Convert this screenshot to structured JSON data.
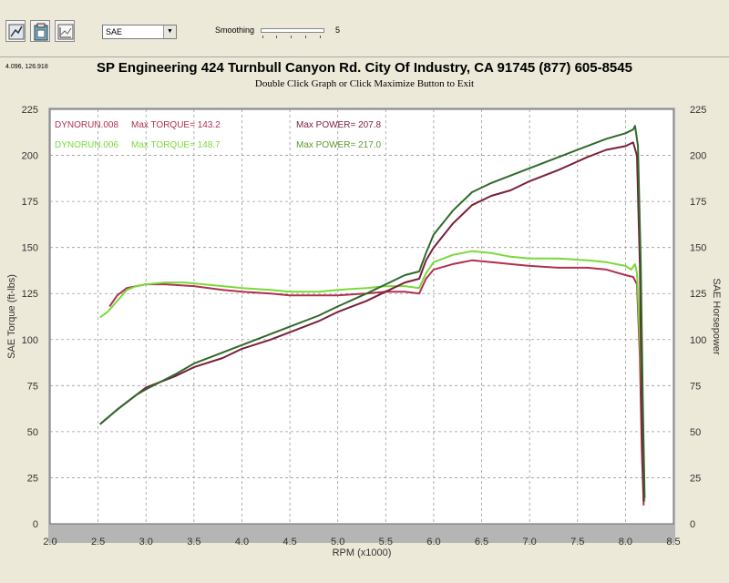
{
  "toolbar": {
    "buttons": [
      "graph-settings-icon",
      "clipboard-icon",
      "chart-options-icon"
    ],
    "select_value": "SAE",
    "smoothing_label": "Smoothing",
    "smoothing_value": "5"
  },
  "coordinate_readout": "4.096, 126.918",
  "header": {
    "title": "SP Engineering 424 Turnbull Canyon Rd. City Of Industry, CA 91745 (877) 605-8545",
    "subtitle": "Double Click Graph or Click Maximize Button to Exit"
  },
  "legend": [
    {
      "run": "DYNORUN.008",
      "torque_text": "Max TORQUE= 143.2",
      "power_text": "Max POWER= 207.8",
      "color": "#b03050"
    },
    {
      "run": "DYNORUN.006",
      "torque_text": "Max TORQUE= 148.7",
      "power_text": "Max POWER= 217.0",
      "color": "#7ad93a"
    }
  ],
  "chart_data": {
    "type": "line",
    "xlabel": "RPM (x1000)",
    "ylabel_left": "SAE Torque (ft-lbs)",
    "ylabel_right": "SAE Horsepower",
    "xlim": [
      2.0,
      8.5
    ],
    "ylim": [
      0,
      225
    ],
    "x_ticks": [
      "2.0",
      "2.5",
      "3.0",
      "3.5",
      "4.0",
      "4.5",
      "5.0",
      "5.5",
      "6.0",
      "6.5",
      "7.0",
      "7.5",
      "8.0",
      "8.5"
    ],
    "y_ticks": [
      "0",
      "25",
      "50",
      "75",
      "100",
      "125",
      "150",
      "175",
      "200",
      "225"
    ],
    "grid": true,
    "series": [
      {
        "name": "DYNORUN.008 Torque",
        "color": "#b03050",
        "points": [
          [
            2.62,
            118
          ],
          [
            2.7,
            124
          ],
          [
            2.8,
            128
          ],
          [
            2.9,
            129
          ],
          [
            3.0,
            130
          ],
          [
            3.2,
            130
          ],
          [
            3.5,
            129
          ],
          [
            3.8,
            127
          ],
          [
            4.0,
            126
          ],
          [
            4.3,
            125
          ],
          [
            4.5,
            124
          ],
          [
            4.8,
            124
          ],
          [
            5.0,
            124
          ],
          [
            5.3,
            125
          ],
          [
            5.5,
            126
          ],
          [
            5.7,
            126
          ],
          [
            5.85,
            125
          ],
          [
            5.92,
            133
          ],
          [
            6.0,
            138
          ],
          [
            6.2,
            141
          ],
          [
            6.4,
            143
          ],
          [
            6.6,
            142
          ],
          [
            6.8,
            141
          ],
          [
            7.0,
            140
          ],
          [
            7.3,
            139
          ],
          [
            7.6,
            139
          ],
          [
            7.8,
            138
          ],
          [
            8.0,
            135
          ],
          [
            8.08,
            134
          ],
          [
            8.12,
            130
          ],
          [
            8.15,
            90
          ],
          [
            8.17,
            40
          ],
          [
            8.19,
            10
          ]
        ]
      },
      {
        "name": "DYNORUN.006 Torque",
        "color": "#7ad93a",
        "points": [
          [
            2.52,
            112
          ],
          [
            2.6,
            115
          ],
          [
            2.7,
            121
          ],
          [
            2.8,
            127
          ],
          [
            2.9,
            129
          ],
          [
            3.0,
            130
          ],
          [
            3.2,
            131
          ],
          [
            3.4,
            131
          ],
          [
            3.6,
            130
          ],
          [
            3.8,
            129
          ],
          [
            4.0,
            128
          ],
          [
            4.3,
            127
          ],
          [
            4.5,
            126
          ],
          [
            4.8,
            126
          ],
          [
            5.0,
            127
          ],
          [
            5.3,
            128
          ],
          [
            5.5,
            129
          ],
          [
            5.7,
            129
          ],
          [
            5.85,
            128
          ],
          [
            5.92,
            136
          ],
          [
            6.0,
            142
          ],
          [
            6.2,
            146
          ],
          [
            6.4,
            148
          ],
          [
            6.6,
            147
          ],
          [
            6.8,
            145
          ],
          [
            7.0,
            144
          ],
          [
            7.3,
            144
          ],
          [
            7.6,
            143
          ],
          [
            7.8,
            142
          ],
          [
            8.0,
            140
          ],
          [
            8.06,
            138
          ],
          [
            8.1,
            141
          ],
          [
            8.12,
            136
          ],
          [
            8.15,
            100
          ],
          [
            8.18,
            50
          ],
          [
            8.2,
            12
          ]
        ]
      },
      {
        "name": "DYNORUN.008 Power",
        "color": "#7a1f3a",
        "points": [
          [
            2.52,
            54
          ],
          [
            2.7,
            62
          ],
          [
            2.9,
            70
          ],
          [
            3.0,
            74
          ],
          [
            3.3,
            80
          ],
          [
            3.5,
            85
          ],
          [
            3.8,
            90
          ],
          [
            4.0,
            95
          ],
          [
            4.3,
            100
          ],
          [
            4.5,
            104
          ],
          [
            4.8,
            110
          ],
          [
            5.0,
            115
          ],
          [
            5.3,
            121
          ],
          [
            5.5,
            126
          ],
          [
            5.7,
            131
          ],
          [
            5.85,
            133
          ],
          [
            5.92,
            143
          ],
          [
            6.0,
            150
          ],
          [
            6.2,
            163
          ],
          [
            6.4,
            173
          ],
          [
            6.6,
            178
          ],
          [
            6.8,
            181
          ],
          [
            7.0,
            186
          ],
          [
            7.3,
            192
          ],
          [
            7.6,
            199
          ],
          [
            7.8,
            203
          ],
          [
            8.0,
            205
          ],
          [
            8.08,
            207
          ],
          [
            8.12,
            200
          ],
          [
            8.15,
            140
          ],
          [
            8.17,
            60
          ],
          [
            8.19,
            12
          ]
        ]
      },
      {
        "name": "DYNORUN.006 Power",
        "color": "#2f6a2a",
        "points": [
          [
            2.52,
            54
          ],
          [
            2.7,
            62
          ],
          [
            2.9,
            70
          ],
          [
            3.0,
            73
          ],
          [
            3.3,
            81
          ],
          [
            3.5,
            87
          ],
          [
            3.8,
            93
          ],
          [
            4.0,
            97
          ],
          [
            4.3,
            103
          ],
          [
            4.5,
            107
          ],
          [
            4.8,
            113
          ],
          [
            5.0,
            118
          ],
          [
            5.3,
            125
          ],
          [
            5.5,
            130
          ],
          [
            5.7,
            135
          ],
          [
            5.85,
            137
          ],
          [
            5.92,
            147
          ],
          [
            6.0,
            157
          ],
          [
            6.2,
            170
          ],
          [
            6.4,
            180
          ],
          [
            6.6,
            185
          ],
          [
            6.8,
            189
          ],
          [
            7.0,
            193
          ],
          [
            7.3,
            199
          ],
          [
            7.6,
            205
          ],
          [
            7.8,
            209
          ],
          [
            8.0,
            212
          ],
          [
            8.08,
            214
          ],
          [
            8.1,
            216
          ],
          [
            8.13,
            205
          ],
          [
            8.16,
            140
          ],
          [
            8.18,
            70
          ],
          [
            8.2,
            14
          ]
        ]
      }
    ]
  }
}
